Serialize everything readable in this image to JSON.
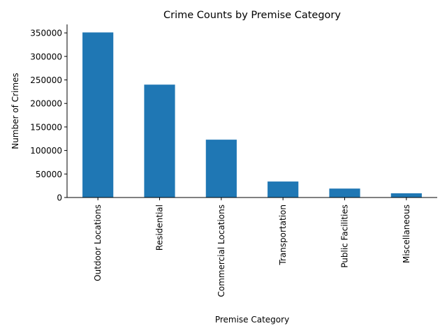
{
  "chart_data": {
    "type": "bar",
    "title": "Crime Counts by Premise Category",
    "xlabel": "Premise Category",
    "ylabel": "Number of Crimes",
    "categories": [
      "Outdoor Locations",
      "Residential",
      "Commercial Locations",
      "Transportation",
      "Public Facilities",
      "Miscellaneous"
    ],
    "values": [
      351000,
      240000,
      123000,
      34000,
      19000,
      9000
    ],
    "ylim": [
      0,
      368000
    ],
    "yticks": [
      0,
      50000,
      100000,
      150000,
      200000,
      250000,
      300000,
      350000
    ],
    "grid": false,
    "bar_color": "#1f77b4"
  }
}
